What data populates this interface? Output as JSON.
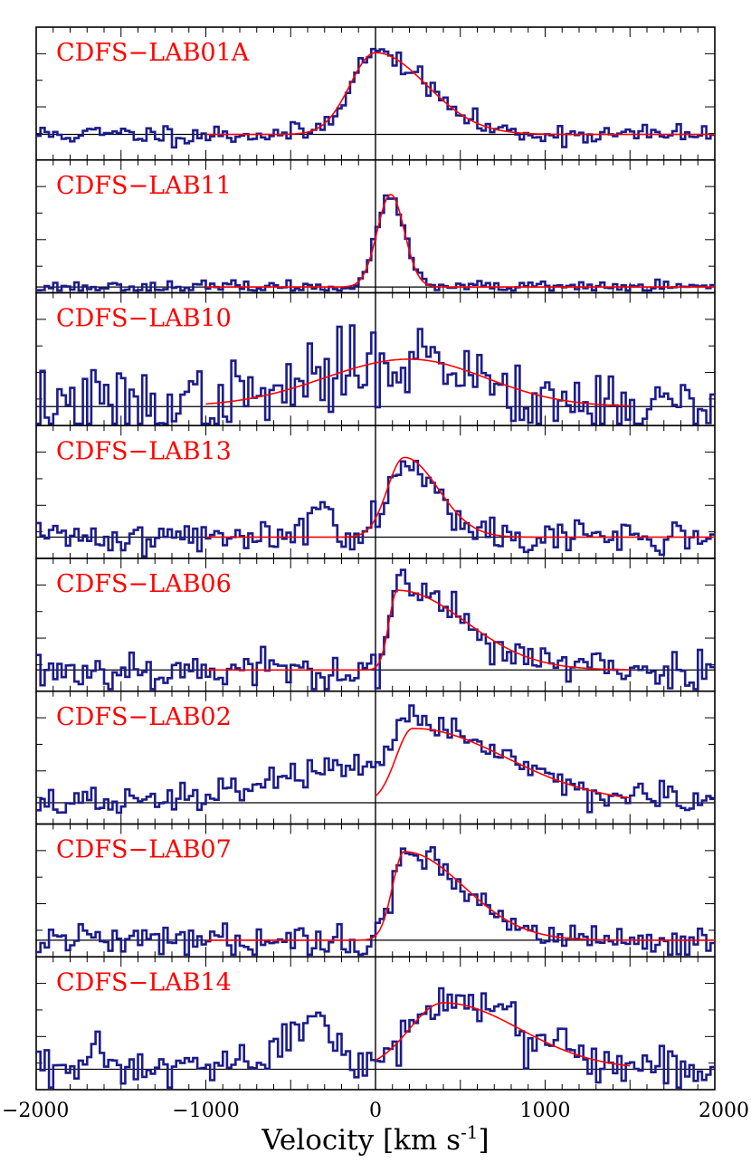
{
  "chart_data": {
    "type": "line",
    "xlabel": "Velocity [km s",
    "xlabel_sup": "-1",
    "xlabel_close": "]",
    "xlim": [
      -2000,
      2000
    ],
    "xticks_major": [
      -2000,
      -1000,
      0,
      1000,
      2000
    ],
    "xtick_labels": [
      "−2000",
      "−1000",
      "0",
      "1000",
      "2000"
    ],
    "zero_line_x": 0,
    "colors": {
      "data": "#1c1c8c",
      "model": "#ff0000",
      "label": "#ff0000",
      "axes": "#000000"
    },
    "panels": [
      {
        "label": "CDFS−LAB01A",
        "ylim": [
          -0.25,
          1.05
        ],
        "fit": {
          "amp": 0.8,
          "peak": 0,
          "sigma_left": 150,
          "sigma_right": 300,
          "range": [
            -1000,
            2000
          ]
        },
        "noise": 0.05,
        "seed": 11,
        "bumps": []
      },
      {
        "label": "CDFS−LAB11",
        "ylim": [
          -0.05,
          1.1
        ],
        "fit": {
          "amp": 0.8,
          "peak": 90,
          "sigma_left": 80,
          "sigma_right": 80,
          "range": [
            -1000,
            2000
          ]
        },
        "noise": 0.025,
        "seed": 23,
        "bumps": []
      },
      {
        "label": "CDFS−LAB10",
        "ylim": [
          -0.2,
          1.2
        ],
        "fit": {
          "amp": 0.5,
          "peak": 200,
          "sigma_left": 500,
          "sigma_right": 450,
          "range": [
            -1000,
            1500
          ]
        },
        "noise": 0.2,
        "seed": 37,
        "bumps": []
      },
      {
        "label": "CDFS−LAB13",
        "ylim": [
          -0.2,
          1.05
        ],
        "fit": {
          "amp": 0.75,
          "peak": 170,
          "sigma_left": 100,
          "sigma_right": 200,
          "range": [
            -1000,
            2000
          ]
        },
        "noise": 0.08,
        "seed": 41,
        "bumps": [
          {
            "center": -330,
            "width": 60,
            "amp": 0.35
          }
        ]
      },
      {
        "label": "CDFS−LAB06",
        "ylim": [
          -0.2,
          1.05
        ],
        "fit": {
          "amp": 0.75,
          "peak": 130,
          "sigma_left": 50,
          "sigma_right": 400,
          "range": [
            -1000,
            1500
          ]
        },
        "noise": 0.1,
        "seed": 53,
        "bumps": []
      },
      {
        "label": "CDFS−LAB02",
        "ylim": [
          -0.2,
          1.05
        ],
        "fit": {
          "amp": 0.7,
          "peak": 220,
          "sigma_left": 100,
          "sigma_right": 550,
          "range": [
            0,
            1500
          ]
        },
        "noise": 0.07,
        "seed": 67,
        "bumps": [
          {
            "center": -300,
            "width": 400,
            "amp": 0.3
          }
        ]
      },
      {
        "label": "CDFS−LAB07",
        "ylim": [
          -0.15,
          1.05
        ],
        "fit": {
          "amp": 0.8,
          "peak": 170,
          "sigma_left": 70,
          "sigma_right": 350,
          "range": [
            -1000,
            2000
          ]
        },
        "noise": 0.07,
        "seed": 79,
        "bumps": []
      },
      {
        "label": "CDFS−LAB14",
        "ylim": [
          -0.2,
          1.1
        ],
        "fit": {
          "amp": 0.65,
          "peak": 400,
          "sigma_left": 200,
          "sigma_right": 450,
          "range": [
            0,
            1500
          ]
        },
        "noise": 0.12,
        "seed": 97,
        "bumps": [
          {
            "center": -400,
            "width": 120,
            "amp": 0.55
          }
        ]
      }
    ]
  }
}
